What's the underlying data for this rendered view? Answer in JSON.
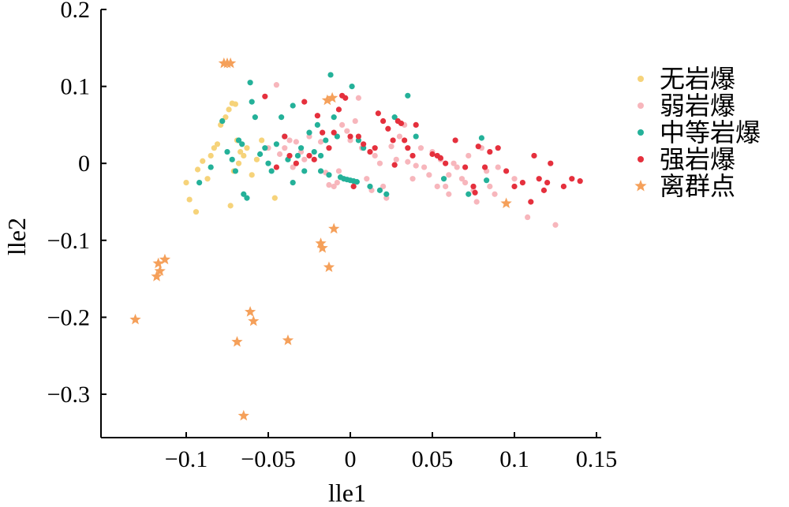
{
  "chart_data": {
    "type": "scatter",
    "xlabel": "lle1",
    "ylabel": "lle2",
    "xlim": [
      -0.14,
      0.15
    ],
    "ylim": [
      -0.35,
      0.2
    ],
    "xticks": [
      -0.1,
      -0.05,
      0,
      0.05,
      0.1,
      0.15
    ],
    "xtick_labels": [
      "−0.1",
      "−0.05",
      "0",
      "0.05",
      "0.1",
      "0.15"
    ],
    "yticks": [
      0.2,
      0.1,
      0,
      -0.1,
      -0.2,
      -0.3
    ],
    "ytick_labels": [
      "0.2",
      "0.1",
      "0",
      "−0.1",
      "−0.2",
      "−0.3"
    ],
    "grid": false,
    "legend_position": "right",
    "series": [
      {
        "name": "无岩爆",
        "color": "#f6d37a",
        "marker": "circle",
        "points": [
          [
            -0.1,
            -0.025
          ],
          [
            -0.098,
            -0.047
          ],
          [
            -0.094,
            -0.063
          ],
          [
            -0.093,
            -0.008
          ],
          [
            -0.09,
            0.003
          ],
          [
            -0.087,
            -0.02
          ],
          [
            -0.085,
            0.01
          ],
          [
            -0.083,
            0.02
          ],
          [
            -0.081,
            0.025
          ],
          [
            -0.079,
            0.05
          ],
          [
            -0.078,
            0.055
          ],
          [
            -0.076,
            0.06
          ],
          [
            -0.074,
            0.07
          ],
          [
            -0.072,
            0.078
          ],
          [
            -0.07,
            0.077
          ],
          [
            -0.069,
            0.03
          ],
          [
            -0.067,
            0.015
          ],
          [
            -0.065,
            0.01
          ],
          [
            -0.063,
            0.02
          ],
          [
            -0.073,
            -0.055
          ],
          [
            -0.071,
            -0.01
          ],
          [
            -0.068,
            0.0
          ],
          [
            -0.057,
            0.005
          ],
          [
            -0.054,
            0.03
          ],
          [
            -0.046,
            -0.045
          ],
          [
            -0.06,
            -0.015
          ]
        ]
      },
      {
        "name": "弱岩爆",
        "color": "#f7b6bc",
        "marker": "circle",
        "points": [
          [
            -0.045,
            0.102
          ],
          [
            -0.043,
            0.012
          ],
          [
            -0.04,
            0.02
          ],
          [
            -0.037,
            0.03
          ],
          [
            -0.033,
            0.028
          ],
          [
            -0.03,
            0.015
          ],
          [
            -0.028,
            0.005
          ],
          [
            -0.025,
            0.035
          ],
          [
            -0.02,
            0.062
          ],
          [
            -0.018,
            0.028
          ],
          [
            -0.015,
            -0.012
          ],
          [
            -0.013,
            -0.028
          ],
          [
            -0.01,
            -0.03
          ],
          [
            -0.008,
            -0.025
          ],
          [
            -0.005,
            0.05
          ],
          [
            -0.002,
            0.042
          ],
          [
            0.0,
            0.03
          ],
          [
            0.003,
            0.055
          ],
          [
            0.005,
            0.085
          ],
          [
            0.007,
            0.02
          ],
          [
            0.01,
            -0.02
          ],
          [
            0.013,
            -0.035
          ],
          [
            0.015,
            0.01
          ],
          [
            0.018,
            0.0
          ],
          [
            0.02,
            -0.03
          ],
          [
            0.022,
            -0.045
          ],
          [
            0.025,
            0.022
          ],
          [
            0.028,
            0.005
          ],
          [
            0.03,
            0.035
          ],
          [
            0.033,
            0.05
          ],
          [
            0.035,
            0.002
          ],
          [
            0.038,
            -0.02
          ],
          [
            0.04,
            -0.003
          ],
          [
            0.043,
            0.02
          ],
          [
            0.045,
            -0.005
          ],
          [
            0.048,
            -0.015
          ],
          [
            0.05,
            0.015
          ],
          [
            0.053,
            -0.03
          ],
          [
            0.055,
            0.005
          ],
          [
            0.058,
            -0.03
          ],
          [
            0.06,
            -0.015
          ],
          [
            0.063,
            0.0
          ],
          [
            0.065,
            -0.005
          ],
          [
            0.068,
            -0.02
          ],
          [
            0.07,
            -0.025
          ],
          [
            0.072,
            0.01
          ],
          [
            0.075,
            -0.035
          ],
          [
            0.077,
            -0.05
          ],
          [
            0.08,
            0.02
          ],
          [
            0.083,
            -0.01
          ],
          [
            0.085,
            -0.03
          ],
          [
            0.088,
            -0.04
          ],
          [
            0.09,
            -0.005
          ],
          [
            0.1,
            -0.02
          ],
          [
            0.108,
            -0.07
          ],
          [
            0.125,
            -0.08
          ],
          [
            0.06,
            -0.04
          ],
          [
            -0.05,
            0.02
          ],
          [
            -0.035,
            -0.005
          ],
          [
            -0.007,
            -0.01
          ]
        ]
      },
      {
        "name": "中等岩爆",
        "color": "#24b199",
        "marker": "circle",
        "points": [
          [
            -0.078,
            0.055
          ],
          [
            -0.075,
            0.015
          ],
          [
            -0.072,
            0.005
          ],
          [
            -0.07,
            -0.01
          ],
          [
            -0.068,
            0.03
          ],
          [
            -0.066,
            0.025
          ],
          [
            -0.065,
            -0.04
          ],
          [
            -0.063,
            -0.045
          ],
          [
            -0.061,
            0.105
          ],
          [
            -0.06,
            0.08
          ],
          [
            -0.058,
            0.06
          ],
          [
            -0.055,
            0.012
          ],
          [
            -0.052,
            0.02
          ],
          [
            -0.05,
            0.0
          ],
          [
            -0.048,
            -0.01
          ],
          [
            -0.045,
            0.025
          ],
          [
            -0.042,
            0.06
          ],
          [
            -0.04,
            0.035
          ],
          [
            -0.038,
            0.005
          ],
          [
            -0.035,
            -0.025
          ],
          [
            -0.032,
            0.01
          ],
          [
            -0.03,
            0.02
          ],
          [
            -0.028,
            -0.01
          ],
          [
            -0.025,
            0.04
          ],
          [
            -0.022,
            0.015
          ],
          [
            -0.02,
            0.05
          ],
          [
            -0.018,
            -0.01
          ],
          [
            -0.015,
            0.03
          ],
          [
            -0.013,
            -0.015
          ],
          [
            -0.012,
            0.115
          ],
          [
            -0.01,
            0.06
          ],
          [
            -0.008,
            0.035
          ],
          [
            -0.006,
            -0.018
          ],
          [
            -0.004,
            -0.02
          ],
          [
            -0.002,
            -0.021
          ],
          [
            0.0,
            -0.022
          ],
          [
            0.002,
            -0.023
          ],
          [
            0.004,
            -0.024
          ],
          [
            0.001,
            0.1
          ],
          [
            0.005,
            0.03
          ],
          [
            0.008,
            0.02
          ],
          [
            0.012,
            -0.03
          ],
          [
            0.018,
            -0.035
          ],
          [
            0.022,
            -0.04
          ],
          [
            0.027,
            0.06
          ],
          [
            0.035,
            0.088
          ],
          [
            0.04,
            0.035
          ],
          [
            0.057,
            -0.02
          ],
          [
            0.072,
            -0.04
          ],
          [
            0.08,
            0.033
          ],
          [
            0.083,
            -0.022
          ],
          [
            -0.092,
            -0.025
          ],
          [
            -0.085,
            -0.005
          ],
          [
            -0.035,
            0.075
          ],
          [
            -0.018,
            0.01
          ]
        ]
      },
      {
        "name": "强岩爆",
        "color": "#e5303d",
        "marker": "circle",
        "points": [
          [
            -0.052,
            0.087
          ],
          [
            -0.04,
            0.035
          ],
          [
            -0.037,
            0.01
          ],
          [
            -0.033,
            0.0
          ],
          [
            -0.028,
            0.08
          ],
          [
            -0.025,
            0.01
          ],
          [
            -0.022,
            0.005
          ],
          [
            -0.02,
            0.062
          ],
          [
            -0.017,
            0.04
          ],
          [
            -0.013,
            0.02
          ],
          [
            -0.01,
            0.04
          ],
          [
            -0.007,
            0.07
          ],
          [
            -0.005,
            0.088
          ],
          [
            -0.003,
            0.085
          ],
          [
            0.0,
            0.035
          ],
          [
            0.002,
            -0.03
          ],
          [
            0.005,
            0.035
          ],
          [
            0.008,
            0.025
          ],
          [
            0.012,
            0.015
          ],
          [
            0.015,
            0.02
          ],
          [
            0.017,
            0.065
          ],
          [
            0.02,
            0.055
          ],
          [
            0.023,
            0.045
          ],
          [
            0.026,
            0.03
          ],
          [
            0.029,
            0.055
          ],
          [
            0.031,
            0.052
          ],
          [
            0.033,
            0.03
          ],
          [
            0.035,
            0.02
          ],
          [
            0.038,
            0.01
          ],
          [
            0.04,
            0.05
          ],
          [
            0.05,
            0.012
          ],
          [
            0.053,
            0.01
          ],
          [
            0.055,
            0.007
          ],
          [
            0.058,
            0.0
          ],
          [
            0.064,
            0.03
          ],
          [
            0.07,
            -0.005
          ],
          [
            0.075,
            -0.03
          ],
          [
            0.078,
            0.022
          ],
          [
            0.082,
            -0.005
          ],
          [
            0.085,
            0.015
          ],
          [
            0.09,
            0.02
          ],
          [
            0.095,
            -0.01
          ],
          [
            0.1,
            -0.03
          ],
          [
            0.105,
            -0.025
          ],
          [
            0.11,
            -0.05
          ],
          [
            0.112,
            0.01
          ],
          [
            0.115,
            -0.02
          ],
          [
            0.118,
            -0.035
          ],
          [
            0.12,
            -0.025
          ],
          [
            0.122,
            0.0
          ],
          [
            0.13,
            -0.03
          ],
          [
            0.135,
            -0.02
          ],
          [
            0.14,
            -0.023
          ],
          [
            0.076,
            -0.038
          ],
          [
            -0.045,
            -0.005
          ],
          [
            0.027,
            -0.002
          ]
        ]
      },
      {
        "name": "离群点",
        "color": "#f5a05a",
        "marker": "star",
        "points": [
          [
            -0.077,
            0.13
          ],
          [
            -0.075,
            0.13
          ],
          [
            -0.073,
            0.13
          ],
          [
            -0.014,
            0.082
          ],
          [
            -0.011,
            0.085
          ],
          [
            -0.117,
            -0.13
          ],
          [
            -0.116,
            -0.14
          ],
          [
            -0.118,
            -0.147
          ],
          [
            -0.113,
            -0.125
          ],
          [
            -0.131,
            -0.203
          ],
          [
            -0.061,
            -0.193
          ],
          [
            -0.059,
            -0.205
          ],
          [
            -0.069,
            -0.232
          ],
          [
            -0.065,
            -0.328
          ],
          [
            -0.038,
            -0.23
          ],
          [
            -0.018,
            -0.104
          ],
          [
            -0.017,
            -0.11
          ],
          [
            -0.013,
            -0.135
          ],
          [
            -0.01,
            -0.085
          ],
          [
            0.095,
            -0.052
          ]
        ]
      }
    ]
  }
}
